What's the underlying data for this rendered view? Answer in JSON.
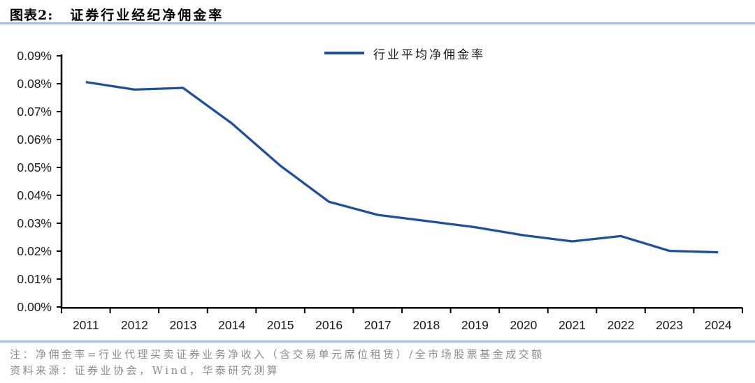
{
  "header": {
    "figure_label": "图表2:",
    "figure_title": "证券行业经纪净佣金率"
  },
  "chart_data": {
    "type": "line",
    "title": "证券行业经纪净佣金率",
    "categories": [
      "2011",
      "2012",
      "2013",
      "2014",
      "2015",
      "2016",
      "2017",
      "2018",
      "2019",
      "2020",
      "2021",
      "2022",
      "2023",
      "2024"
    ],
    "series": [
      {
        "name": "行业平均净佣金率",
        "values": [
          0.0806,
          0.0779,
          0.0785,
          0.0658,
          0.0506,
          0.0377,
          0.033,
          0.0308,
          0.0286,
          0.0257,
          0.0235,
          0.0254,
          0.0201,
          0.0196
        ]
      }
    ],
    "unit": "%",
    "xlabel": "",
    "ylabel": "",
    "ylim": [
      0,
      0.09
    ],
    "y_tick_step": 0.01,
    "y_tick_format": "0.00%",
    "grid": false,
    "legend_position": "top-center",
    "line_color": "#1E4F9C"
  },
  "footer": {
    "note": "注：净佣金率=行业代理买卖证券业务净收入（含交易单元席位租赁）/全市场股票基金成交额",
    "source": "资料来源：证券业协会，Wind，华泰研究测算"
  },
  "colors": {
    "line": "#1E4F9C",
    "divider": "#A6BEDA",
    "axis": "#000000",
    "tick_label": "#1a1a1a",
    "note_text": "#8C8C8C"
  }
}
